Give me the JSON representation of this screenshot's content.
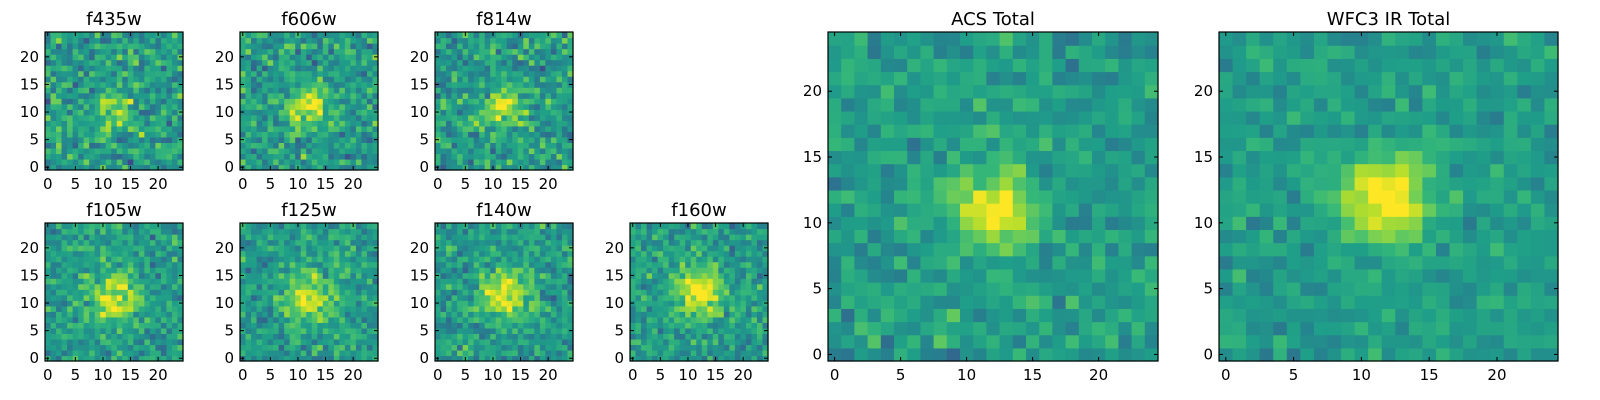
{
  "chart_data": [
    {
      "type": "heatmap",
      "title": "f435w",
      "grid_size": 25,
      "xlim": [
        0,
        24
      ],
      "ylim": [
        0,
        24
      ],
      "xticks": [
        0,
        5,
        10,
        15,
        20
      ],
      "yticks": [
        0,
        5,
        10,
        15,
        20
      ],
      "peak": [
        12,
        11
      ],
      "peak_sigma": 2.5,
      "peak_strength": 0.25,
      "noise": 0.36,
      "colormap": "viridis",
      "seed": 11
    },
    {
      "type": "heatmap",
      "title": "f606w",
      "grid_size": 25,
      "xlim": [
        0,
        24
      ],
      "ylim": [
        0,
        24
      ],
      "xticks": [
        0,
        5,
        10,
        15,
        20
      ],
      "yticks": [
        0,
        5,
        10,
        15,
        20
      ],
      "peak": [
        12,
        11
      ],
      "peak_sigma": 2.5,
      "peak_strength": 0.4,
      "noise": 0.33,
      "colormap": "viridis",
      "seed": 23
    },
    {
      "type": "heatmap",
      "title": "f814w",
      "grid_size": 25,
      "xlim": [
        0,
        24
      ],
      "ylim": [
        0,
        24
      ],
      "xticks": [
        0,
        5,
        10,
        15,
        20
      ],
      "yticks": [
        0,
        5,
        10,
        15,
        20
      ],
      "peak": [
        12,
        11
      ],
      "peak_sigma": 2.5,
      "peak_strength": 0.35,
      "noise": 0.34,
      "colormap": "viridis",
      "seed": 37
    },
    {
      "type": "heatmap",
      "title": "f105w",
      "grid_size": 25,
      "xlim": [
        0,
        24
      ],
      "ylim": [
        0,
        24
      ],
      "xticks": [
        0,
        5,
        10,
        15,
        20
      ],
      "yticks": [
        0,
        5,
        10,
        15,
        20
      ],
      "peak": [
        12,
        11
      ],
      "peak_sigma": 3,
      "peak_strength": 0.4,
      "noise": 0.28,
      "colormap": "viridis",
      "seed": 41
    },
    {
      "type": "heatmap",
      "title": "f125w",
      "grid_size": 25,
      "xlim": [
        0,
        24
      ],
      "ylim": [
        0,
        24
      ],
      "xticks": [
        0,
        5,
        10,
        15,
        20
      ],
      "yticks": [
        0,
        5,
        10,
        15,
        20
      ],
      "peak": [
        12,
        11
      ],
      "peak_sigma": 3,
      "peak_strength": 0.4,
      "noise": 0.28,
      "colormap": "viridis",
      "seed": 53
    },
    {
      "type": "heatmap",
      "title": "f140w",
      "grid_size": 25,
      "xlim": [
        0,
        24
      ],
      "ylim": [
        0,
        24
      ],
      "xticks": [
        0,
        5,
        10,
        15,
        20
      ],
      "yticks": [
        0,
        5,
        10,
        15,
        20
      ],
      "peak": [
        12,
        12
      ],
      "peak_sigma": 3,
      "peak_strength": 0.45,
      "noise": 0.28,
      "colormap": "viridis",
      "seed": 67
    },
    {
      "type": "heatmap",
      "title": "f160w",
      "grid_size": 25,
      "xlim": [
        0,
        24
      ],
      "ylim": [
        0,
        24
      ],
      "xticks": [
        0,
        5,
        10,
        15,
        20
      ],
      "yticks": [
        0,
        5,
        10,
        15,
        20
      ],
      "peak": [
        12,
        12
      ],
      "peak_sigma": 3,
      "peak_strength": 0.45,
      "noise": 0.28,
      "colormap": "viridis",
      "seed": 79
    },
    {
      "type": "heatmap",
      "title": "ACS Total",
      "grid_size": 25,
      "xlim": [
        0,
        24
      ],
      "ylim": [
        0,
        24
      ],
      "xticks": [
        0,
        5,
        10,
        15,
        20
      ],
      "yticks": [
        0,
        5,
        10,
        15,
        20
      ],
      "peak": [
        12,
        11
      ],
      "peak_sigma": 2,
      "peak_strength": 0.5,
      "noise": 0.22,
      "colormap": "viridis",
      "seed": 97
    },
    {
      "type": "heatmap",
      "title": "WFC3 IR Total",
      "grid_size": 25,
      "xlim": [
        0,
        24
      ],
      "ylim": [
        0,
        24
      ],
      "xticks": [
        0,
        5,
        10,
        15,
        20
      ],
      "yticks": [
        0,
        5,
        10,
        15,
        20
      ],
      "peak": [
        12,
        12
      ],
      "peak_sigma": 2.2,
      "peak_strength": 0.55,
      "noise": 0.18,
      "colormap": "viridis",
      "seed": 113
    }
  ]
}
